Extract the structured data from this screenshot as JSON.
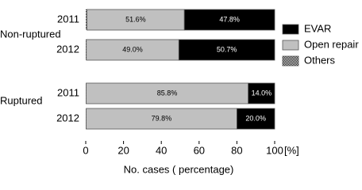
{
  "chart_data": {
    "type": "stacked-bar-horizontal",
    "groups": [
      {
        "label": "Non-ruptured",
        "categories": [
          "2011",
          "2012"
        ]
      },
      {
        "label": "Ruptured",
        "categories": [
          "2011",
          "2012"
        ]
      }
    ],
    "series": [
      {
        "name": "Others",
        "color": "#000000",
        "pattern": "checker",
        "values": [
          0.6,
          0.3,
          0.2,
          0.2
        ]
      },
      {
        "name": "Open repair",
        "color": "#c0c0c0",
        "values": [
          51.6,
          49.0,
          85.8,
          79.8
        ],
        "value_labels": [
          "51.6%",
          "49.0%",
          "85.8%",
          "79.8%"
        ]
      },
      {
        "name": "EVAR",
        "color": "#000000",
        "values": [
          47.8,
          50.7,
          14.0,
          20.0
        ],
        "value_labels": [
          "47.8%",
          "50.7%",
          "14.0%",
          "20.0%"
        ]
      }
    ],
    "xlim": [
      0,
      100
    ],
    "xticks": [
      0,
      20,
      40,
      60,
      80,
      100
    ],
    "x_unit": "[%]",
    "x_label": "No. cases ( percentage)",
    "legend": "right"
  }
}
